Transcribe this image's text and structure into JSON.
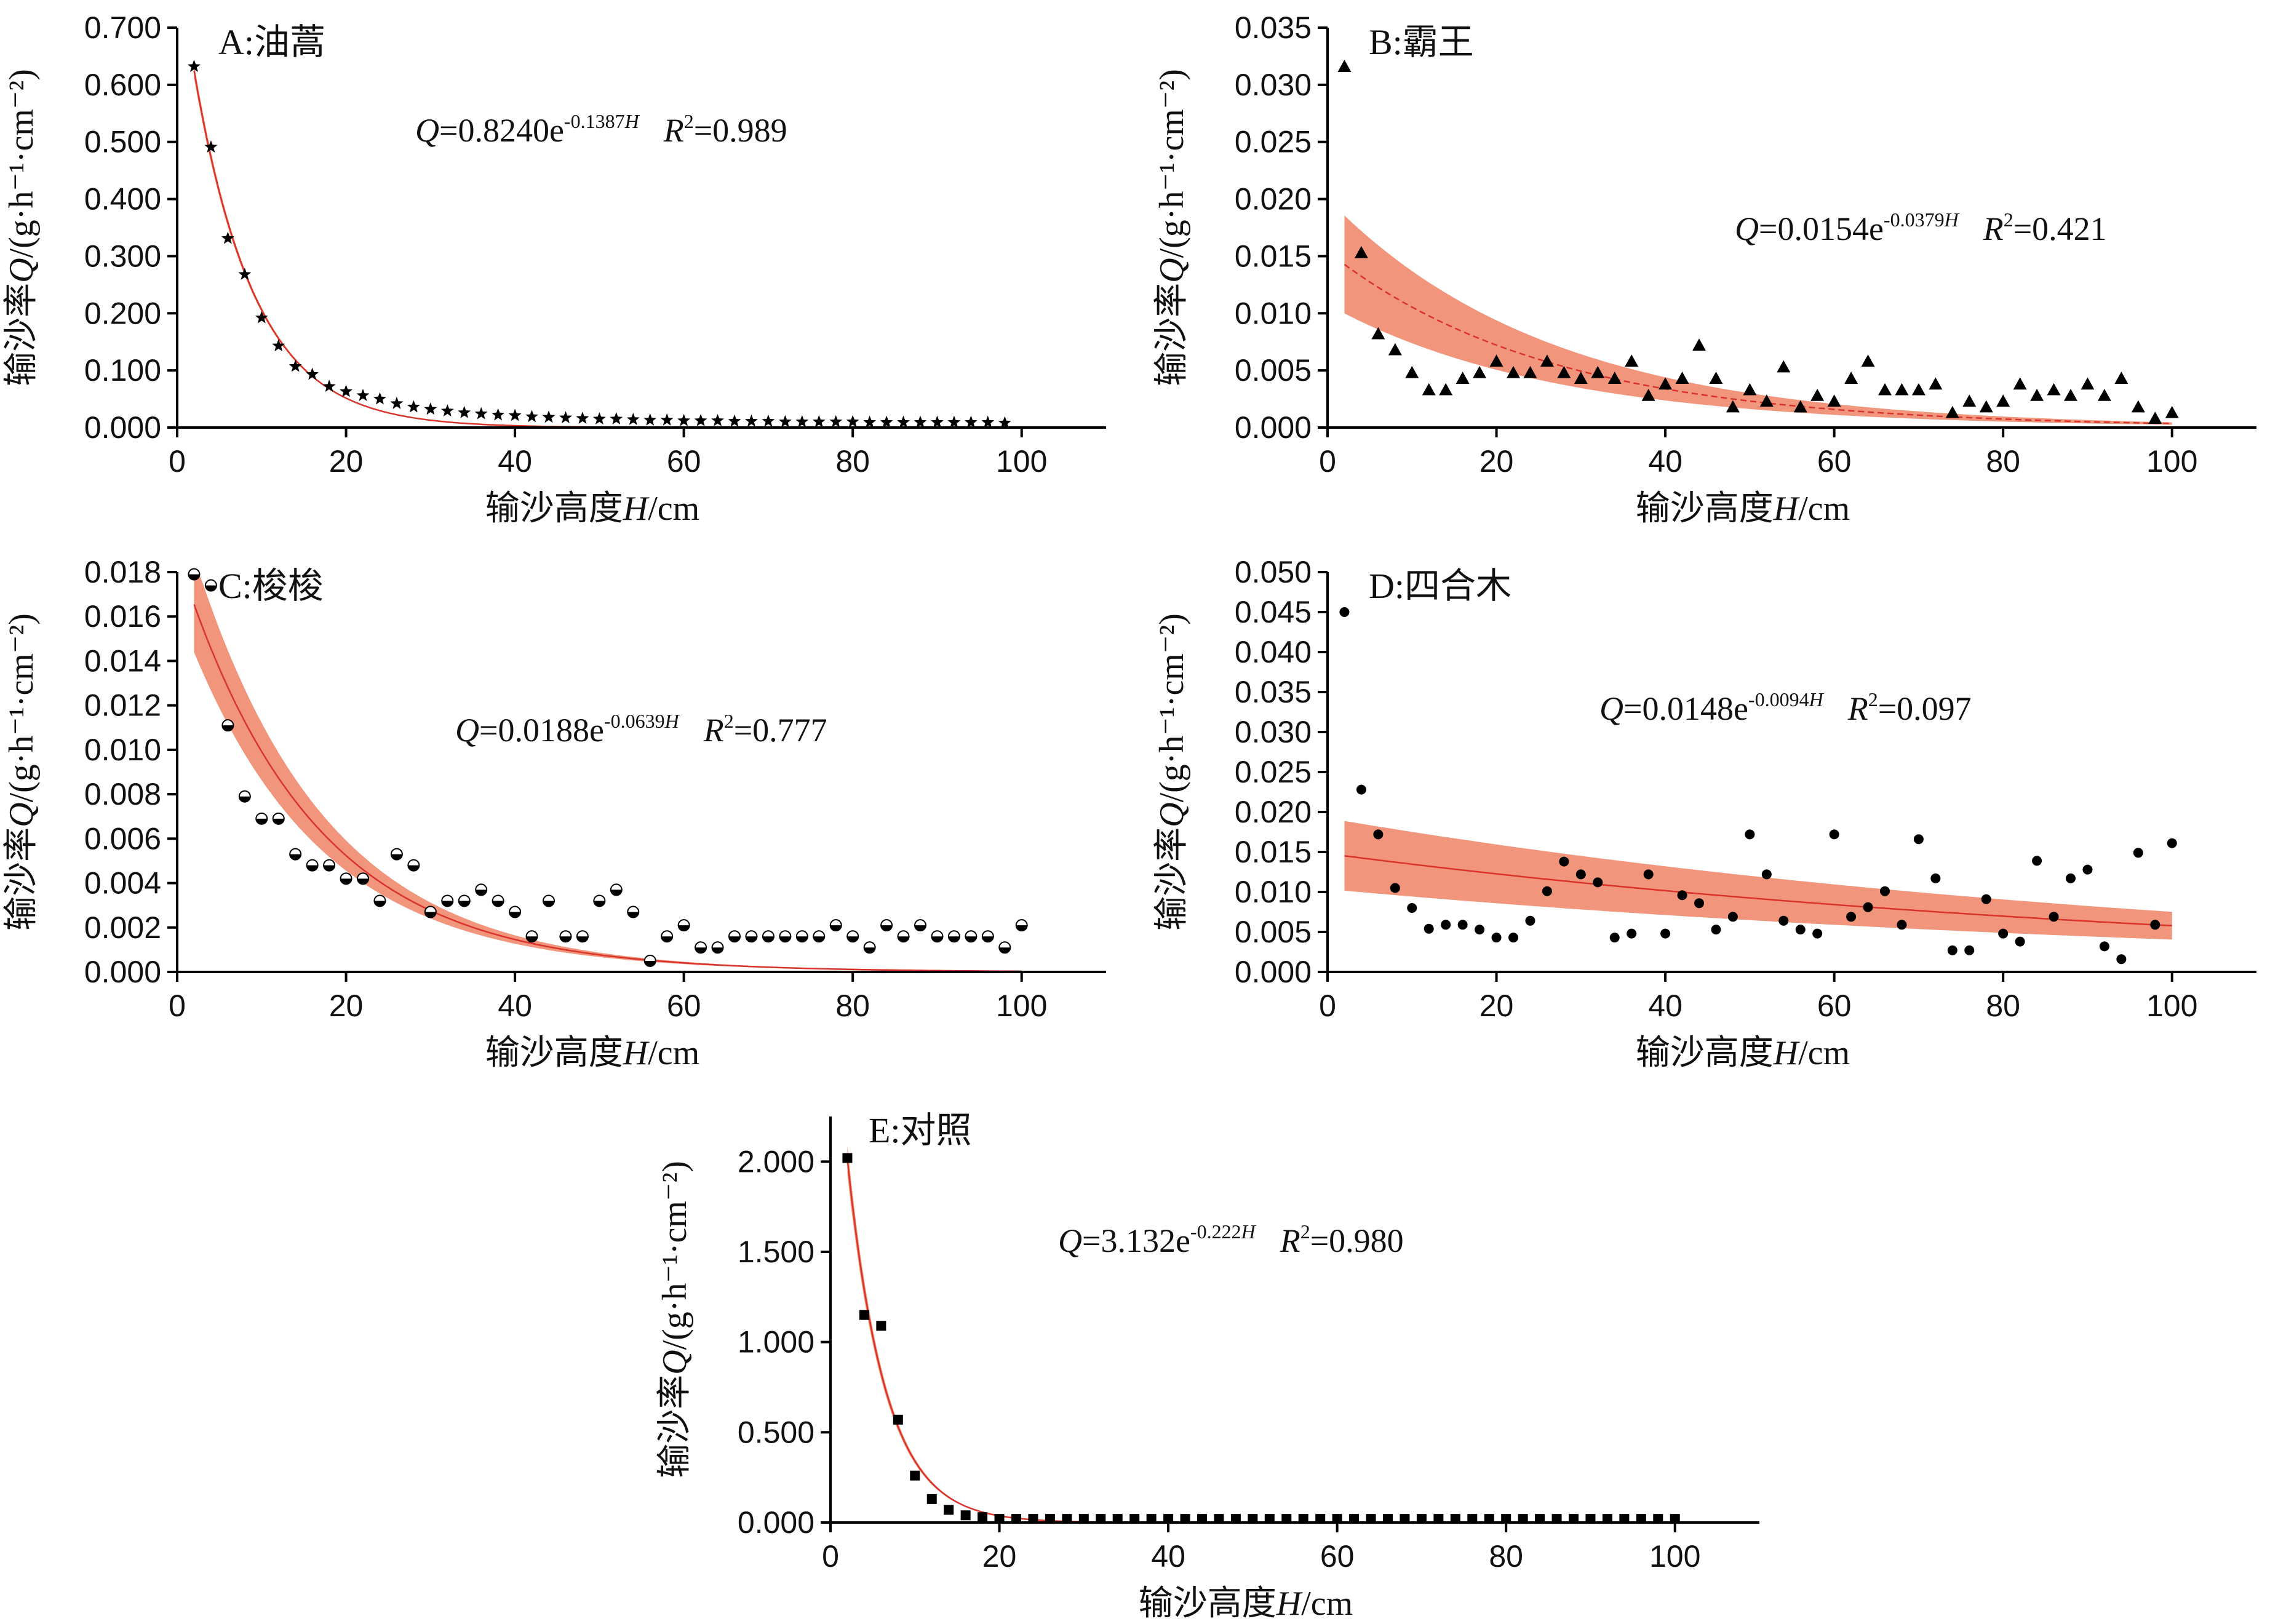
{
  "chart_data": [
    {
      "id": "A",
      "type": "scatter",
      "title": "A:油蒿",
      "xlabel_prefix": "输沙高度",
      "xlabel_var": "H",
      "xlabel_unit": "/cm",
      "ylabel_prefix": "输沙率",
      "ylabel_var": "Q",
      "ylabel_unit": "/(g·h⁻¹·cm⁻²)",
      "xlim": [
        0,
        110
      ],
      "ylim": [
        0,
        0.7
      ],
      "xticks": [
        "0",
        "20",
        "40",
        "60",
        "80",
        "100"
      ],
      "xtick_values": [
        0,
        20,
        40,
        60,
        80,
        100
      ],
      "yticks": [
        "0.000",
        "0.100",
        "0.200",
        "0.300",
        "0.400",
        "0.500",
        "0.600",
        "0.700"
      ],
      "ytick_values": [
        0,
        0.1,
        0.2,
        0.3,
        0.4,
        0.5,
        0.6,
        0.7
      ],
      "marker": "star",
      "fit": {
        "a": 0.824,
        "b": 0.1387,
        "band": 0.02,
        "dashed": false
      },
      "equation": {
        "q": "Q",
        "pre": "=0.8240e",
        "exp": "-0.1387",
        "expvar": "H",
        "r": "R",
        "rsup": "2",
        "rval": "=0.989"
      },
      "x": [
        2,
        4,
        6,
        8,
        10,
        12,
        14,
        16,
        18,
        20,
        22,
        24,
        26,
        28,
        30,
        32,
        34,
        36,
        38,
        40,
        42,
        44,
        46,
        48,
        50,
        52,
        54,
        56,
        58,
        60,
        62,
        64,
        66,
        68,
        70,
        72,
        74,
        76,
        78,
        80,
        82,
        84,
        86,
        88,
        90,
        92,
        94,
        96,
        98
      ],
      "y": [
        0.632,
        0.491,
        0.331,
        0.268,
        0.192,
        0.143,
        0.107,
        0.093,
        0.072,
        0.063,
        0.056,
        0.05,
        0.042,
        0.036,
        0.032,
        0.029,
        0.026,
        0.024,
        0.022,
        0.021,
        0.019,
        0.018,
        0.017,
        0.016,
        0.015,
        0.015,
        0.014,
        0.013,
        0.013,
        0.012,
        0.012,
        0.012,
        0.011,
        0.011,
        0.011,
        0.01,
        0.01,
        0.01,
        0.01,
        0.01,
        0.009,
        0.009,
        0.009,
        0.009,
        0.009,
        0.009,
        0.009,
        0.009,
        0.008
      ]
    },
    {
      "id": "B",
      "type": "scatter",
      "title": "B:霸王",
      "xlabel_prefix": "输沙高度",
      "xlabel_var": "H",
      "xlabel_unit": "/cm",
      "ylabel_prefix": "输沙率",
      "ylabel_var": "Q",
      "ylabel_unit": "/(g·h⁻¹·cm⁻²)",
      "xlim": [
        0,
        110
      ],
      "ylim": [
        0,
        0.035
      ],
      "xticks": [
        "0",
        "20",
        "40",
        "60",
        "80",
        "100"
      ],
      "xtick_values": [
        0,
        20,
        40,
        60,
        80,
        100
      ],
      "yticks": [
        "0.000",
        "0.005",
        "0.010",
        "0.015",
        "0.020",
        "0.025",
        "0.030",
        "0.035"
      ],
      "ytick_values": [
        0,
        0.005,
        0.01,
        0.015,
        0.02,
        0.025,
        0.03,
        0.035
      ],
      "marker": "triangle",
      "fit": {
        "a": 0.0154,
        "b": 0.0379,
        "band": 0.3,
        "dashed": true
      },
      "equation": {
        "q": "Q",
        "pre": "=0.0154e",
        "exp": "-0.0379",
        "expvar": "H",
        "r": "R",
        "rsup": "2",
        "rval": "=0.421"
      },
      "x": [
        2,
        4,
        6,
        8,
        10,
        12,
        14,
        16,
        18,
        20,
        22,
        24,
        26,
        28,
        30,
        32,
        34,
        36,
        38,
        40,
        42,
        44,
        46,
        48,
        50,
        52,
        54,
        56,
        58,
        60,
        62,
        64,
        66,
        68,
        70,
        72,
        74,
        76,
        78,
        80,
        82,
        84,
        86,
        88,
        90,
        92,
        94,
        96,
        98,
        100
      ],
      "y": [
        0.0316,
        0.0153,
        0.0082,
        0.0068,
        0.0048,
        0.0033,
        0.0033,
        0.0043,
        0.0048,
        0.0058,
        0.0048,
        0.0048,
        0.0058,
        0.0048,
        0.0043,
        0.0048,
        0.0043,
        0.0058,
        0.0028,
        0.0038,
        0.0043,
        0.0072,
        0.0043,
        0.0018,
        0.0033,
        0.0023,
        0.0053,
        0.0018,
        0.0028,
        0.0023,
        0.0043,
        0.0058,
        0.0033,
        0.0033,
        0.0033,
        0.0038,
        0.0013,
        0.0023,
        0.0018,
        0.0023,
        0.0038,
        0.0028,
        0.0033,
        0.0028,
        0.0038,
        0.0028,
        0.0043,
        0.0018,
        0.0008,
        0.0013
      ]
    },
    {
      "id": "C",
      "type": "scatter",
      "title": "C:梭梭",
      "xlabel_prefix": "输沙高度",
      "xlabel_var": "H",
      "xlabel_unit": "/cm",
      "ylabel_prefix": "输沙率",
      "ylabel_var": "Q",
      "ylabel_unit": "/(g·h⁻¹·cm⁻²)",
      "xlim": [
        0,
        110
      ],
      "ylim": [
        0,
        0.018
      ],
      "xticks": [
        "0",
        "20",
        "40",
        "60",
        "80",
        "100"
      ],
      "xtick_values": [
        0,
        20,
        40,
        60,
        80,
        100
      ],
      "yticks": [
        "0.000",
        "0.002",
        "0.004",
        "0.006",
        "0.008",
        "0.010",
        "0.012",
        "0.014",
        "0.016",
        "0.018"
      ],
      "ytick_values": [
        0,
        0.002,
        0.004,
        0.006,
        0.008,
        0.01,
        0.012,
        0.014,
        0.016,
        0.018
      ],
      "marker": "halfcircle",
      "fit": {
        "a": 0.0188,
        "b": 0.0639,
        "band": 0.13,
        "dashed": false
      },
      "equation": {
        "q": "Q",
        "pre": "=0.0188e",
        "exp": "-0.0639",
        "expvar": "H",
        "r": "R",
        "rsup": "2",
        "rval": "=0.777"
      },
      "x": [
        2,
        4,
        6,
        8,
        10,
        12,
        14,
        16,
        18,
        20,
        22,
        24,
        26,
        28,
        30,
        32,
        34,
        36,
        38,
        40,
        42,
        44,
        46,
        48,
        50,
        52,
        54,
        56,
        58,
        60,
        62,
        64,
        66,
        68,
        70,
        72,
        74,
        76,
        78,
        80,
        82,
        84,
        86,
        88,
        90,
        92,
        94,
        96,
        98,
        100
      ],
      "y": [
        0.0179,
        0.0174,
        0.0111,
        0.0079,
        0.0069,
        0.0069,
        0.0053,
        0.0048,
        0.0048,
        0.0042,
        0.0042,
        0.0032,
        0.0053,
        0.0048,
        0.0027,
        0.0032,
        0.0032,
        0.0037,
        0.0032,
        0.0027,
        0.0016,
        0.0032,
        0.0016,
        0.0016,
        0.0032,
        0.0037,
        0.0027,
        0.0005,
        0.0016,
        0.0021,
        0.0011,
        0.0011,
        0.0016,
        0.0016,
        0.0016,
        0.0016,
        0.0016,
        0.0016,
        0.0021,
        0.0016,
        0.0011,
        0.0021,
        0.0016,
        0.0021,
        0.0016,
        0.0016,
        0.0016,
        0.0016,
        0.0011,
        0.0021
      ]
    },
    {
      "id": "D",
      "type": "scatter",
      "title": "D:四合木",
      "xlabel_prefix": "输沙高度",
      "xlabel_var": "H",
      "xlabel_unit": "/cm",
      "ylabel_prefix": "输沙率",
      "ylabel_var": "Q",
      "ylabel_unit": "/(g·h⁻¹·cm⁻²)",
      "xlim": [
        0,
        110
      ],
      "ylim": [
        0,
        0.05
      ],
      "xticks": [
        "0",
        "20",
        "40",
        "60",
        "80",
        "100"
      ],
      "xtick_values": [
        0,
        20,
        40,
        60,
        80,
        100
      ],
      "yticks": [
        "0.000",
        "0.005",
        "0.010",
        "0.015",
        "0.020",
        "0.025",
        "0.030",
        "0.035",
        "0.040",
        "0.045",
        "0.050"
      ],
      "ytick_values": [
        0,
        0.005,
        0.01,
        0.015,
        0.02,
        0.025,
        0.03,
        0.035,
        0.04,
        0.045,
        0.05
      ],
      "marker": "dot",
      "fit": {
        "a": 0.0148,
        "b": 0.0094,
        "band": 0.3,
        "dashed": false
      },
      "equation": {
        "q": "Q",
        "pre": "=0.0148e",
        "exp": "-0.0094",
        "expvar": "H",
        "r": "R",
        "rsup": "2",
        "rval": "=0.097"
      },
      "x": [
        2,
        4,
        6,
        8,
        10,
        12,
        14,
        16,
        18,
        20,
        22,
        24,
        26,
        28,
        30,
        32,
        34,
        36,
        38,
        40,
        42,
        44,
        46,
        48,
        50,
        52,
        54,
        56,
        58,
        60,
        62,
        64,
        66,
        68,
        70,
        72,
        74,
        76,
        78,
        80,
        82,
        84,
        86,
        88,
        90,
        92,
        94,
        96,
        98,
        100
      ],
      "y": [
        0.045,
        0.0228,
        0.0172,
        0.0105,
        0.008,
        0.0054,
        0.0059,
        0.0059,
        0.0053,
        0.0043,
        0.0043,
        0.0064,
        0.0101,
        0.0138,
        0.0122,
        0.0112,
        0.0043,
        0.0048,
        0.0122,
        0.0048,
        0.0096,
        0.0086,
        0.0053,
        0.0069,
        0.0172,
        0.0122,
        0.0064,
        0.0053,
        0.0048,
        0.0172,
        0.0069,
        0.0081,
        0.0101,
        0.0059,
        0.0166,
        0.0117,
        0.0027,
        0.0027,
        0.0091,
        0.0048,
        0.0038,
        0.0139,
        0.0069,
        0.0117,
        0.0128,
        0.0032,
        0.0016,
        0.0149,
        0.0059,
        0.0161
      ]
    },
    {
      "id": "E",
      "type": "scatter",
      "title": "E:对照",
      "xlabel_prefix": "输沙高度",
      "xlabel_var": "H",
      "xlabel_unit": "/cm",
      "ylabel_prefix": "输沙率",
      "ylabel_var": "Q",
      "ylabel_unit": "/(g·h⁻¹·cm⁻²)",
      "xlim": [
        0,
        110
      ],
      "ylim": [
        0,
        2.25
      ],
      "xticks": [
        "0",
        "20",
        "40",
        "60",
        "80",
        "100"
      ],
      "xtick_values": [
        0,
        20,
        40,
        60,
        80,
        100
      ],
      "yticks": [
        "0.000",
        "0.500",
        "1.000",
        "1.500",
        "2.000"
      ],
      "ytick_values": [
        0,
        0.5,
        1.0,
        1.5,
        2.0
      ],
      "marker": "square",
      "fit": {
        "a": 3.132,
        "b": 0.222,
        "band": 0.04,
        "dashed": false
      },
      "equation": {
        "q": "Q",
        "pre": "=3.132e",
        "exp": "-0.222",
        "expvar": "H",
        "r": "R",
        "rsup": "2",
        "rval": "=0.980"
      },
      "x": [
        2,
        4,
        6,
        8,
        10,
        12,
        14,
        16,
        18,
        20,
        22,
        24,
        26,
        28,
        30,
        32,
        34,
        36,
        38,
        40,
        42,
        44,
        46,
        48,
        50,
        52,
        54,
        56,
        58,
        60,
        62,
        64,
        66,
        68,
        70,
        72,
        74,
        76,
        78,
        80,
        82,
        84,
        86,
        88,
        90,
        92,
        94,
        96,
        98,
        100
      ],
      "y": [
        2.02,
        1.15,
        1.09,
        0.57,
        0.26,
        0.13,
        0.07,
        0.04,
        0.03,
        0.02,
        0.02,
        0.02,
        0.02,
        0.02,
        0.02,
        0.02,
        0.02,
        0.02,
        0.02,
        0.02,
        0.02,
        0.02,
        0.02,
        0.02,
        0.02,
        0.02,
        0.02,
        0.02,
        0.02,
        0.02,
        0.02,
        0.02,
        0.02,
        0.02,
        0.02,
        0.02,
        0.02,
        0.02,
        0.02,
        0.02,
        0.02,
        0.02,
        0.02,
        0.02,
        0.02,
        0.02,
        0.02,
        0.02,
        0.02,
        0.02
      ]
    }
  ],
  "colors": {
    "band": "#f08a6e",
    "fit_line": "#d9342b",
    "marker": "#000000",
    "axis": "#000000"
  }
}
